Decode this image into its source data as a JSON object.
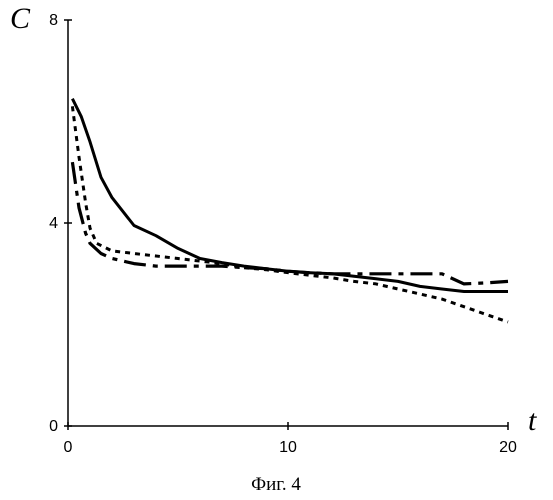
{
  "chart_data": {
    "type": "line",
    "title": "",
    "xlabel": "t",
    "ylabel": "C",
    "caption": "Фиг. 4",
    "xlim": [
      0,
      20
    ],
    "ylim": [
      0,
      8
    ],
    "x_ticks": [
      0,
      10,
      20
    ],
    "y_ticks": [
      0,
      4,
      8
    ],
    "grid": false,
    "legend": "none",
    "series": [
      {
        "style": "solid",
        "x": [
          0.2,
          0.6,
          1.0,
          1.5,
          2.0,
          3.0,
          4.0,
          5.0,
          6.0,
          7.0,
          8.0,
          9.0,
          10.0,
          11.0,
          12.0,
          13.0,
          14.0,
          15.0,
          16.0,
          17.0,
          18.0,
          19.0,
          20.0
        ],
        "y": [
          6.45,
          6.1,
          5.6,
          4.9,
          4.5,
          3.95,
          3.75,
          3.5,
          3.3,
          3.22,
          3.15,
          3.1,
          3.05,
          3.02,
          3.0,
          2.95,
          2.9,
          2.85,
          2.75,
          2.7,
          2.65,
          2.65,
          2.65
        ]
      },
      {
        "style": "dashed",
        "x": [
          0.2,
          0.5,
          0.8,
          1.0,
          1.3,
          2.0,
          3.0,
          4.0,
          5.0,
          6.0,
          7.0,
          8.0,
          9.0,
          10.0,
          11.0,
          12.0,
          13.0,
          14.0,
          15.0,
          16.0,
          17.0,
          18.0,
          19.0,
          20.0
        ],
        "y": [
          6.3,
          5.3,
          4.4,
          3.9,
          3.6,
          3.45,
          3.4,
          3.35,
          3.3,
          3.25,
          3.2,
          3.12,
          3.08,
          3.02,
          2.97,
          2.92,
          2.85,
          2.8,
          2.7,
          2.6,
          2.5,
          2.35,
          2.2,
          2.05
        ]
      },
      {
        "style": "dash-dot",
        "x": [
          0.2,
          0.5,
          0.8,
          1.0,
          1.5,
          2.0,
          3.0,
          4.0,
          5.0,
          6.0,
          7.0,
          8.0,
          9.0,
          10.0,
          11.0,
          12.0,
          13.0,
          14.0,
          15.0,
          16.0,
          17.0,
          18.0,
          19.0,
          20.0
        ],
        "y": [
          5.2,
          4.3,
          3.8,
          3.6,
          3.4,
          3.3,
          3.2,
          3.15,
          3.15,
          3.15,
          3.15,
          3.12,
          3.1,
          3.05,
          3.02,
          3.0,
          3.0,
          3.0,
          3.0,
          3.0,
          3.0,
          2.8,
          2.82,
          2.85
        ]
      }
    ]
  }
}
